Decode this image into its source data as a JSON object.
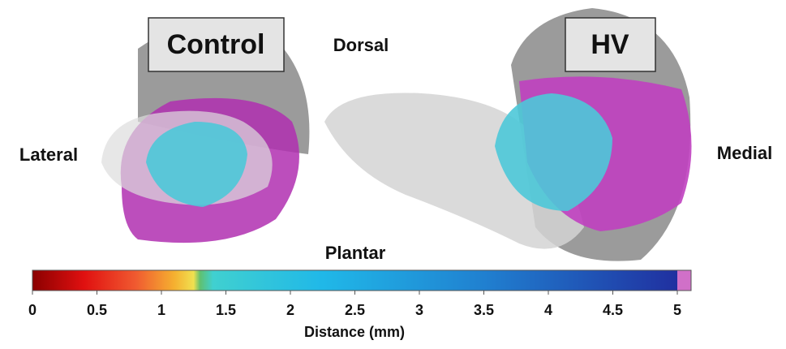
{
  "labels": {
    "control": "Control",
    "hv": "HV",
    "dorsal": "Dorsal",
    "plantar": "Plantar",
    "lateral": "Lateral",
    "medial": "Medial"
  },
  "colorbar": {
    "label": "Distance (mm)",
    "range": [
      0,
      5
    ],
    "ticks": [
      0,
      0.5,
      1,
      1.5,
      2,
      2.5,
      3,
      3.5,
      4,
      4.5,
      5
    ]
  }
}
